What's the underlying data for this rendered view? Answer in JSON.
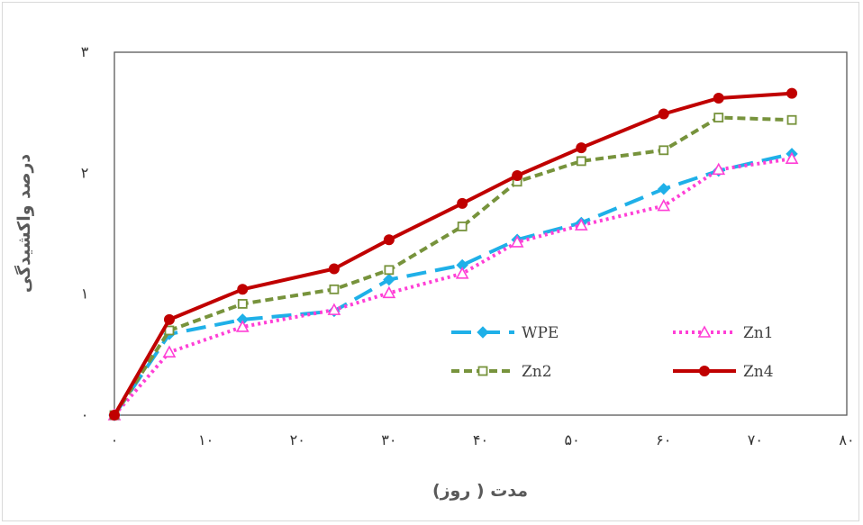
{
  "chart_data": {
    "type": "line",
    "xlabel": "مدت ( روز)",
    "ylabel": "درصد واکشیدگی",
    "xlim": [
      0,
      80
    ],
    "ylim": [
      0,
      3
    ],
    "x_ticks": [
      0,
      10,
      20,
      30,
      40,
      50,
      60,
      70,
      80
    ],
    "x_tick_labels": [
      "۰",
      "۱۰",
      "۲۰",
      "۳۰",
      "۴۰",
      "۵۰",
      "۶۰",
      "۷۰",
      "۸۰"
    ],
    "y_ticks": [
      0,
      1,
      2,
      3
    ],
    "y_tick_labels": [
      "۰",
      "۱",
      "۲",
      "۳"
    ],
    "grid": false,
    "legend": "inside-bottom-right",
    "series": [
      {
        "name": "WPE",
        "color": "#1fb0e8",
        "dash": "long-dash",
        "marker": "diamond",
        "x": [
          0,
          6,
          14,
          24,
          30,
          38,
          44,
          51,
          60,
          66,
          74
        ],
        "y": [
          0,
          0.67,
          0.79,
          0.86,
          1.12,
          1.24,
          1.45,
          1.59,
          1.87,
          2.02,
          2.16
        ]
      },
      {
        "name": "Zn1",
        "color": "#ff3fd6",
        "dash": "dotted",
        "marker": "triangle",
        "x": [
          0,
          6,
          14,
          24,
          30,
          38,
          44,
          51,
          60,
          66,
          74
        ],
        "y": [
          0,
          0.52,
          0.73,
          0.87,
          1.01,
          1.17,
          1.43,
          1.57,
          1.73,
          2.03,
          2.12
        ]
      },
      {
        "name": "Zn2",
        "color": "#77933c",
        "dash": "dashed",
        "marker": "square",
        "x": [
          0,
          6,
          14,
          24,
          30,
          38,
          44,
          51,
          60,
          66,
          74
        ],
        "y": [
          0,
          0.7,
          0.92,
          1.04,
          1.2,
          1.56,
          1.93,
          2.1,
          2.19,
          2.46,
          2.44
        ]
      },
      {
        "name": "Zn4",
        "color": "#c00000",
        "dash": "solid",
        "marker": "circle",
        "x": [
          0,
          6,
          14,
          24,
          30,
          38,
          44,
          51,
          60,
          66,
          74
        ],
        "y": [
          0,
          0.79,
          1.04,
          1.21,
          1.45,
          1.75,
          1.98,
          2.21,
          2.49,
          2.62,
          2.66
        ]
      }
    ]
  }
}
